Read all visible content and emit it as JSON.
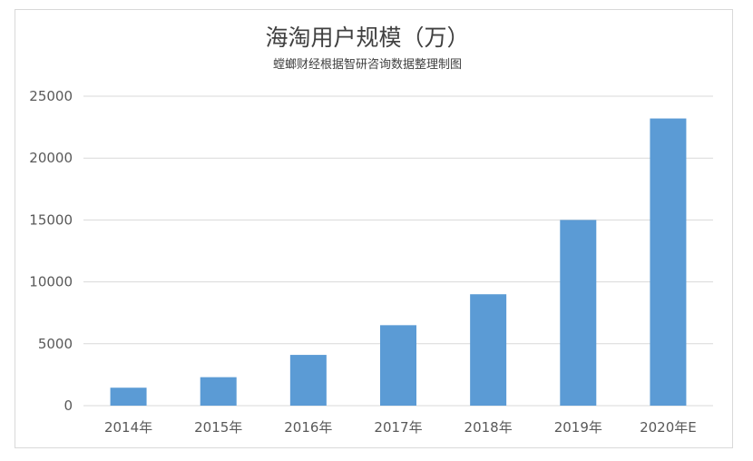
{
  "chart_data": {
    "type": "bar",
    "title": "海淘用户规模（万）",
    "subtitle": "螳螂财经根据智研咨询数据整理制图",
    "categories": [
      "2014年",
      "2015年",
      "2016年",
      "2017年",
      "2018年",
      "2019年",
      "2020年E"
    ],
    "values": [
      1450,
      2300,
      4100,
      6500,
      9000,
      15000,
      23200
    ],
    "ylim": [
      0,
      25000
    ],
    "yticks": [
      0,
      5000,
      10000,
      15000,
      20000,
      25000
    ],
    "grid": true,
    "legend": "none",
    "bar_color": "#5b9bd5",
    "grid_color": "#d9d9d9"
  }
}
